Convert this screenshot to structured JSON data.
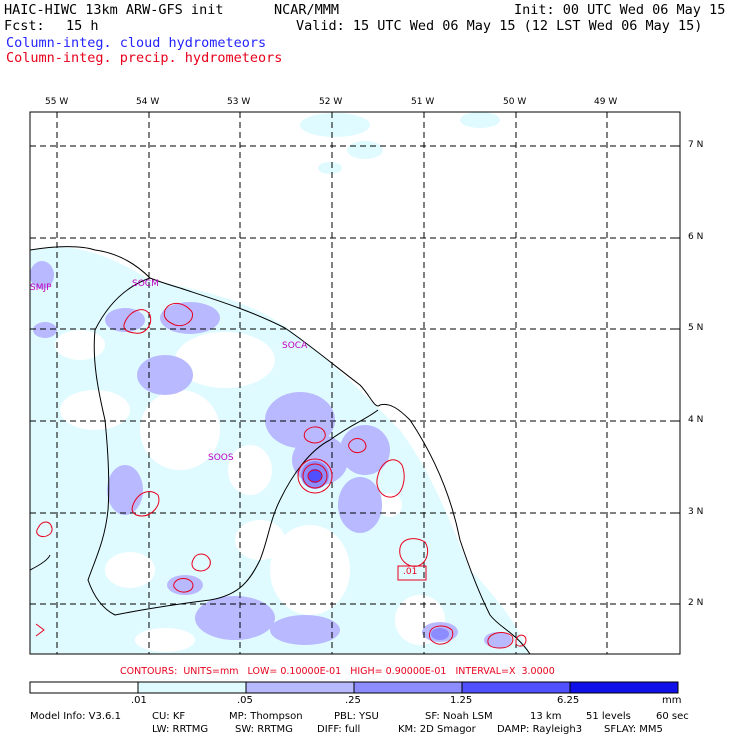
{
  "header": {
    "model": "HAIC-HIWC 13km ARW-GFS init",
    "center": "NCAR/MMM",
    "init": "Init: 00 UTC Wed 06 May 15",
    "fcst_label": "Fcst:",
    "fcst_value": "15 h",
    "valid": "Valid: 15 UTC Wed 06 May 15 (12 LST Wed 06 May 15)",
    "field_cloud": "Column-integ. cloud hydrometeors",
    "field_precip": "Column-integ. precip. hydrometeors"
  },
  "colors": {
    "cloud_title": "#2424ff",
    "precip_title": "#e8001c",
    "level1": "#e0fbff",
    "level2": "#b9b9ff",
    "level3": "#8c8cff",
    "level4": "#5050ff",
    "level5": "#1010e8",
    "contour": "#e8001c",
    "station": "#c000c0"
  },
  "map": {
    "lon_labels": [
      "55 W",
      "54 W",
      "53 W",
      "52 W",
      "51 W",
      "50 W",
      "49 W"
    ],
    "lat_labels": [
      "7 N",
      "6 N",
      "5 N",
      "4 N",
      "3 N",
      "2 N"
    ],
    "stations": [
      "SMJP",
      "SOCM",
      "SOCA",
      "SOOS"
    ],
    "contour_label": ".01"
  },
  "contours_info": {
    "text": "CONTOURS:  UNITS=mm   LOW= 0.10000E-01   HIGH= 0.90000E-01   INTERVAL=X  3.0000"
  },
  "colorbar": {
    "thresholds": [
      ".01",
      ".05",
      ".25",
      "1.25",
      "6.25"
    ],
    "units": "mm"
  },
  "footer": {
    "line1": [
      "Model Info: V3.6.1",
      "CU: KF",
      "MP: Thompson",
      "PBL: YSU",
      "SF: Noah LSM",
      "13 km",
      "51 levels",
      "60 sec"
    ],
    "line2": [
      "LW: RRTMG",
      "SW: RRTMG",
      "DIFF: full",
      "KM: 2D Smagor",
      "DAMP: Rayleigh3",
      "SFLAY: MM5"
    ]
  }
}
